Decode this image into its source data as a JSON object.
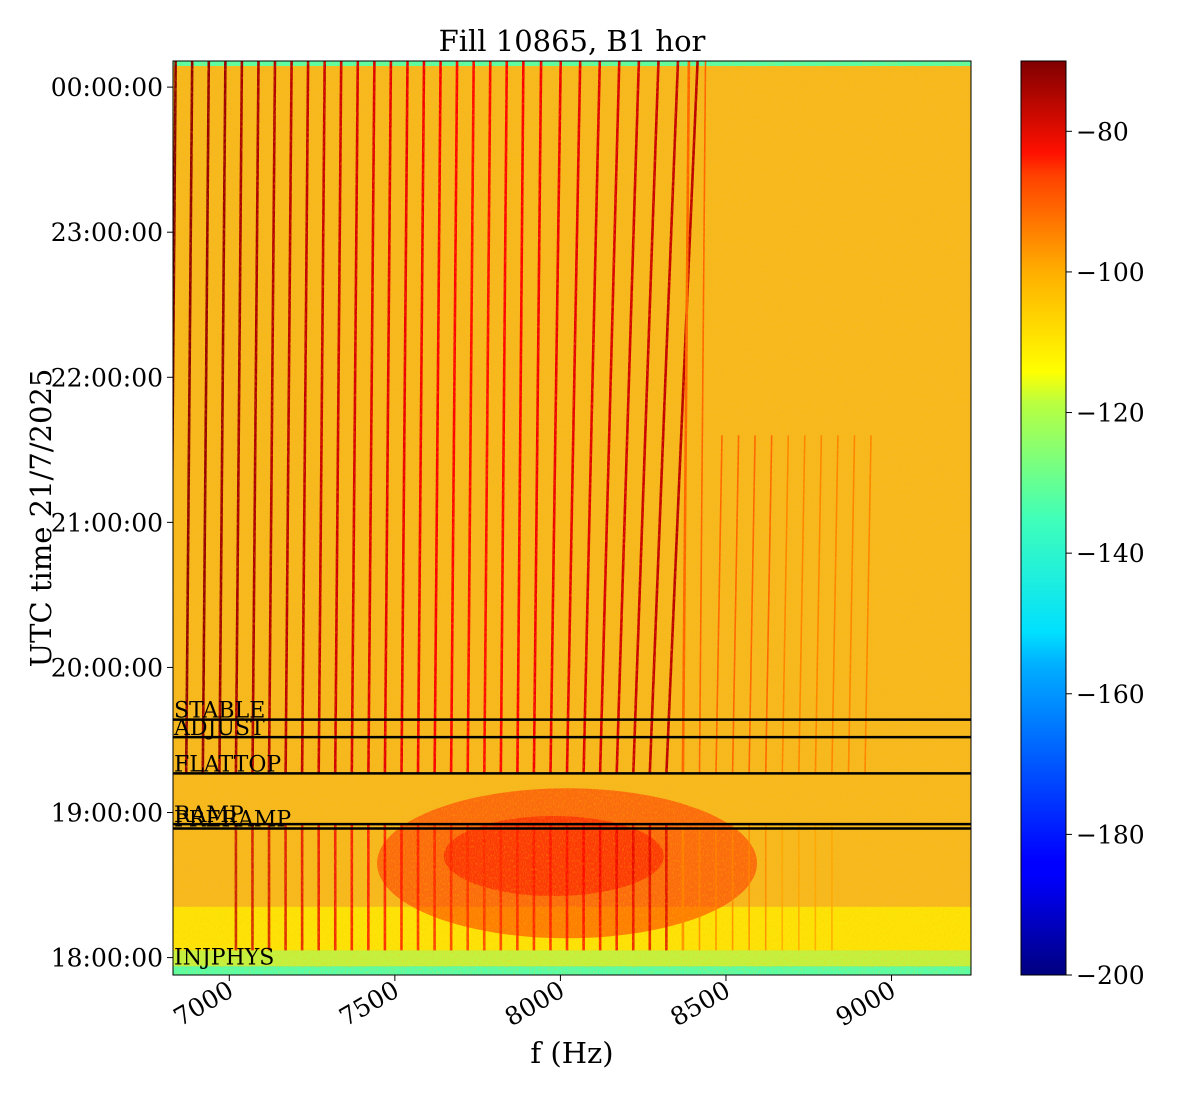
{
  "chart_data": {
    "type": "heatmap",
    "title": "Fill 10865, B1 hor",
    "xlabel": "f (Hz)",
    "ylabel": "UTC time 21/7/2025",
    "xlim": [
      6830,
      9240
    ],
    "ylim_hours": [
      17.88,
      24.18
    ],
    "x_ticks": [
      7000,
      7500,
      8000,
      8500,
      9000
    ],
    "x_tick_labels": [
      "7000",
      "7500",
      "8000",
      "8500",
      "9000"
    ],
    "y_ticks": [
      18,
      19,
      20,
      21,
      22,
      23,
      24
    ],
    "y_tick_labels": [
      "18:00:00",
      "19:00:00",
      "20:00:00",
      "21:00:00",
      "22:00:00",
      "23:00:00",
      "00:00:00"
    ],
    "colormap": "jet",
    "colorbar_range": [
      -200,
      -70
    ],
    "colorbar_ticks": [
      -200,
      -180,
      -160,
      -140,
      -120,
      -100,
      -80
    ],
    "colorbar_tick_labels": [
      "−200",
      "−180",
      "−160",
      "−140",
      "−120",
      "−100",
      "−80"
    ],
    "background_level": -108,
    "beam_modes": [
      {
        "name": "INJPHYS",
        "time_hours": 17.94
      },
      {
        "name": "PRERAMP",
        "time_hours": 18.89
      },
      {
        "name": "RAMP",
        "time_hours": 18.92
      },
      {
        "name": "FLATTOP",
        "time_hours": 19.27
      },
      {
        "name": "ADJUST",
        "time_hours": 19.52
      },
      {
        "name": "STABLE",
        "time_hours": 19.64
      }
    ],
    "line_spacing_hz": 50,
    "line_series_start_hz": 6820,
    "line_series_end_hz": 8950
  }
}
